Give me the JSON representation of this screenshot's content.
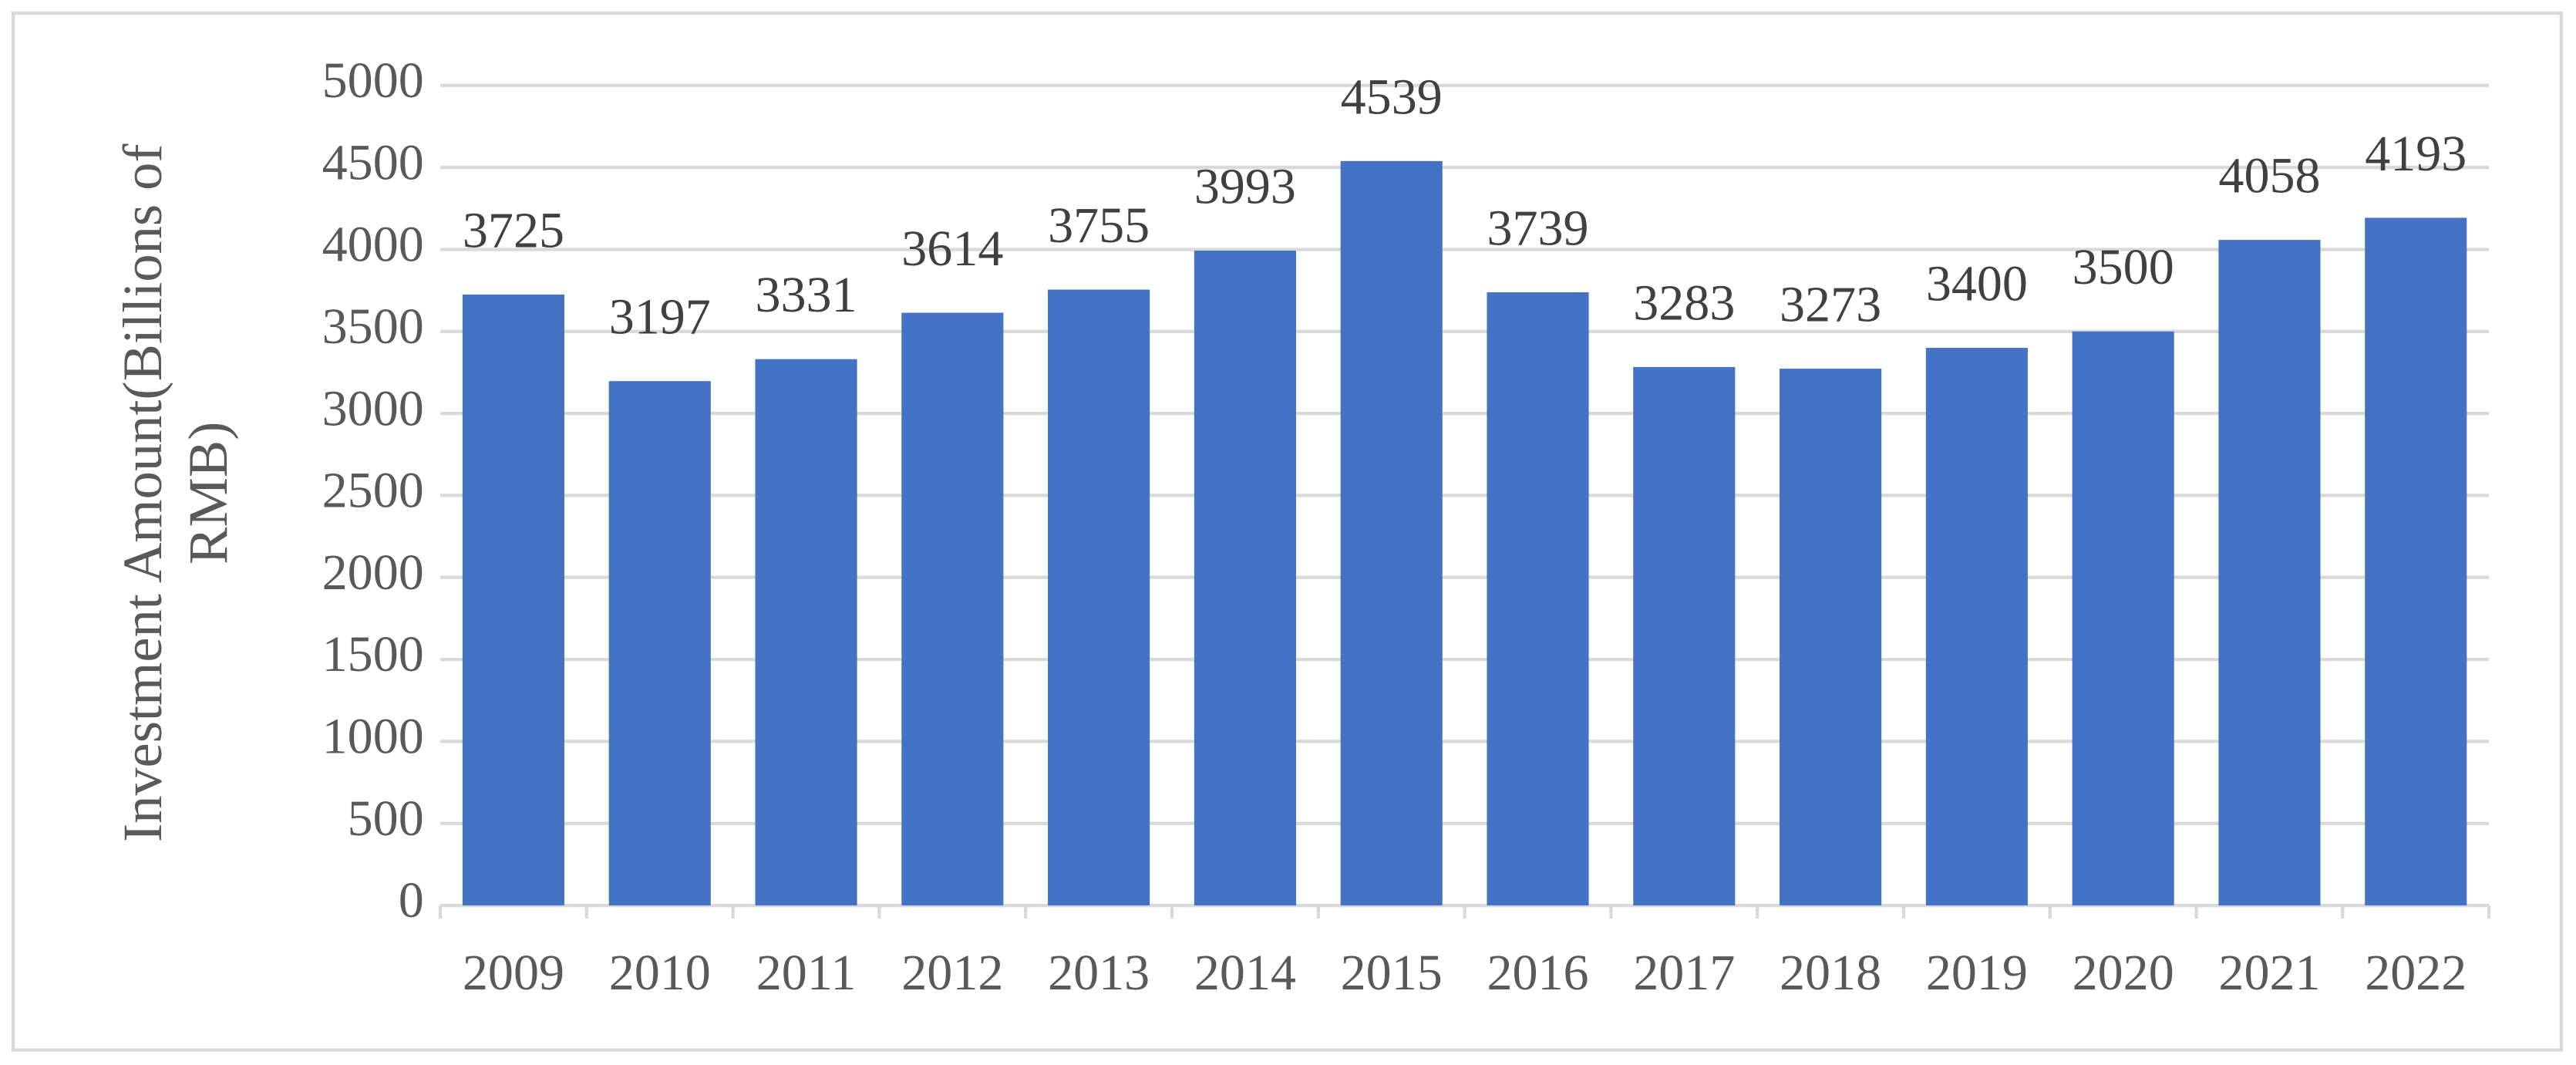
{
  "chart_data": {
    "type": "bar",
    "y_label": "Investment  Amount(Billions of RMB)",
    "categories": [
      "2009",
      "2010",
      "2011",
      "2012",
      "2013",
      "2014",
      "2015",
      "2016",
      "2017",
      "2018",
      "2019",
      "2020",
      "2021",
      "2022"
    ],
    "values": [
      3725,
      3197,
      3331,
      3614,
      3755,
      3993,
      4539,
      3739,
      3283,
      3273,
      3400,
      3500,
      4058,
      4193
    ],
    "color": "#4472c4",
    "ylim": [
      0,
      5000
    ],
    "yticks": [
      0,
      500,
      1000,
      1500,
      2000,
      2500,
      3000,
      3500,
      4000,
      4500,
      5000
    ],
    "grid": true
  }
}
